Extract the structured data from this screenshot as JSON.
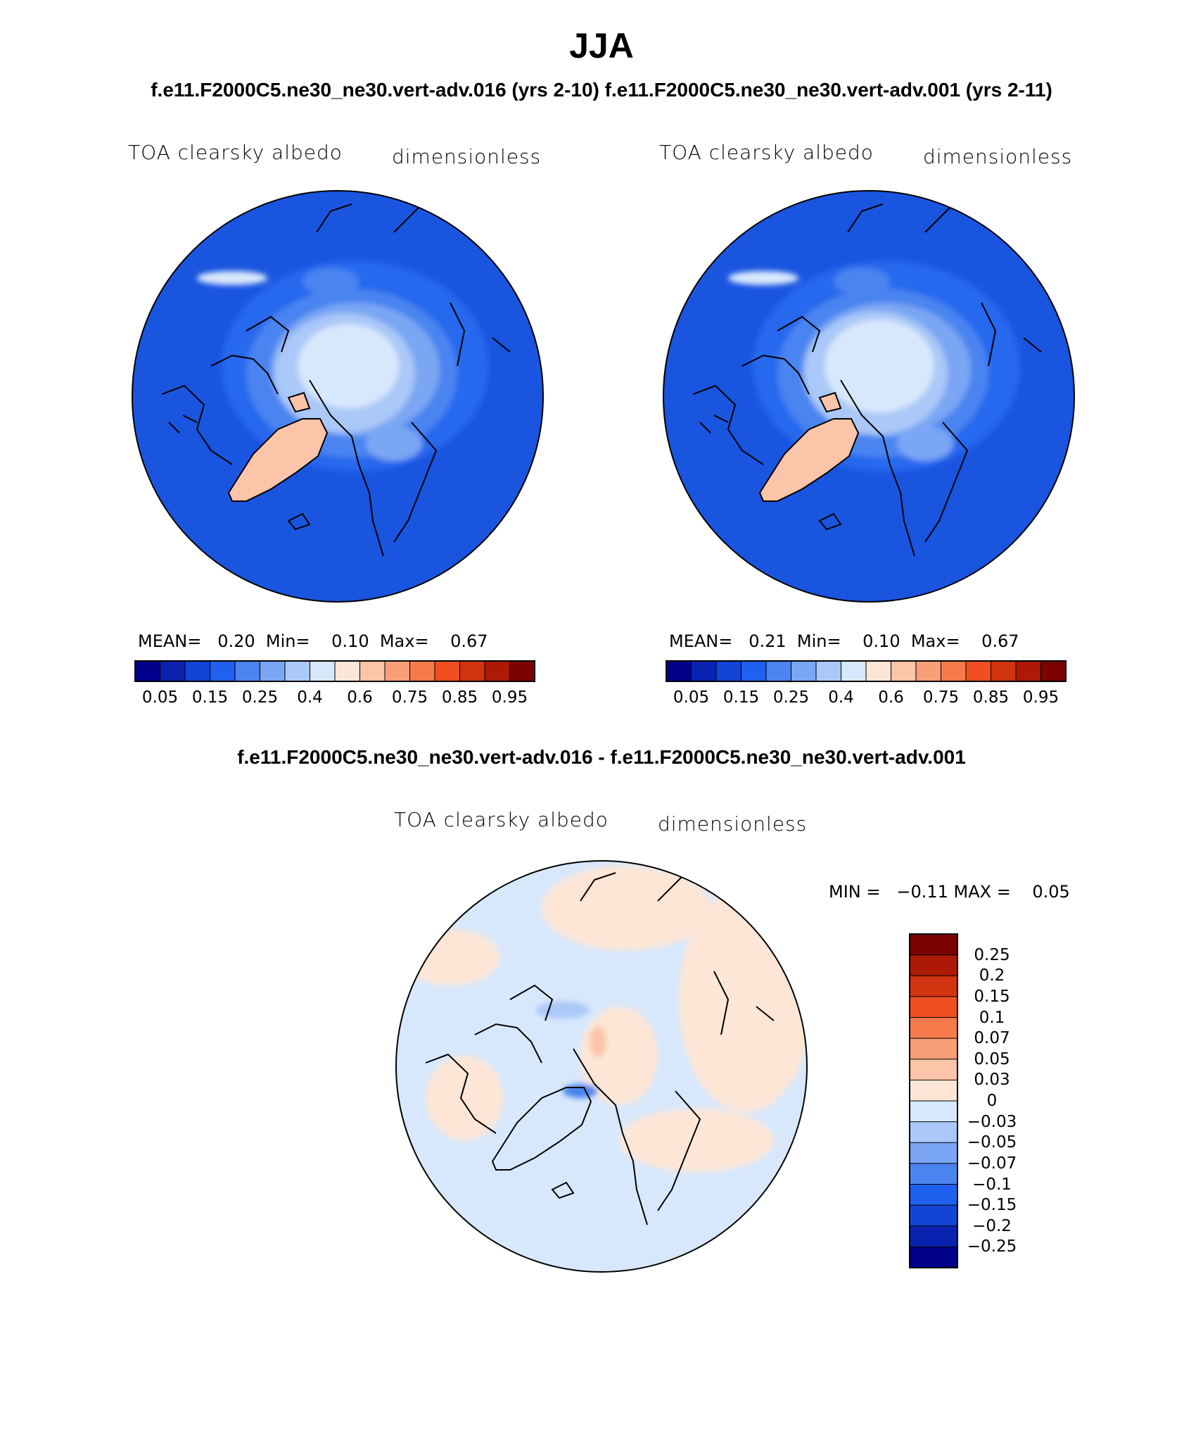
{
  "page": {
    "title": "JJA",
    "subtitle": "f.e11.F2000C5.ne30_ne30.vert-adv.016 (yrs 2-10)  f.e11.F2000C5.ne30_ne30.vert-adv.001 (yrs 2-11)",
    "diff_title": "f.e11.F2000C5.ne30_ne30.vert-adv.016 - f.e11.F2000C5.ne30_ne30.vert-adv.001"
  },
  "panels": [
    {
      "variable": "TOA clearsky albedo",
      "units": "dimensionless",
      "stats": "MEAN=   0.20  Min=    0.10  Max=    0.67"
    },
    {
      "variable": "TOA clearsky albedo",
      "units": "dimensionless",
      "stats": "MEAN=   0.21  Min=    0.10  Max=    0.67"
    }
  ],
  "diff_panel": {
    "variable": "TOA clearsky albedo",
    "units": "dimensionless",
    "stats": "MIN =   −0.11 MAX =    0.05"
  },
  "colorbar_abs": {
    "labels": [
      "0.05",
      "0.15",
      "0.25",
      "0.4",
      "0.6",
      "0.75",
      "0.85",
      "0.95"
    ],
    "colors": [
      "#00008b",
      "#0a22b0",
      "#1144d6",
      "#2060ee",
      "#4a84f0",
      "#7aa6f4",
      "#aac8f8",
      "#d8e8fc",
      "#fde6d6",
      "#fcc4a8",
      "#f99f78",
      "#f57a4c",
      "#ef4f20",
      "#d23310",
      "#ac1a06",
      "#7c0202"
    ]
  },
  "colorbar_diff": {
    "labels": [
      "0.25",
      "0.2",
      "0.15",
      "0.1",
      "0.07",
      "0.05",
      "0.03",
      "0",
      "−0.03",
      "−0.05",
      "−0.07",
      "−0.1",
      "−0.15",
      "−0.2",
      "−0.25"
    ],
    "colors": [
      "#7c0202",
      "#ac1a06",
      "#d23310",
      "#ef4f20",
      "#f57a4c",
      "#f99f78",
      "#fcc4a8",
      "#fde6d6",
      "#d8e8fc",
      "#aac8f8",
      "#7aa6f4",
      "#4a84f0",
      "#2060ee",
      "#1144d6",
      "#0a22b0",
      "#00008b"
    ]
  }
}
